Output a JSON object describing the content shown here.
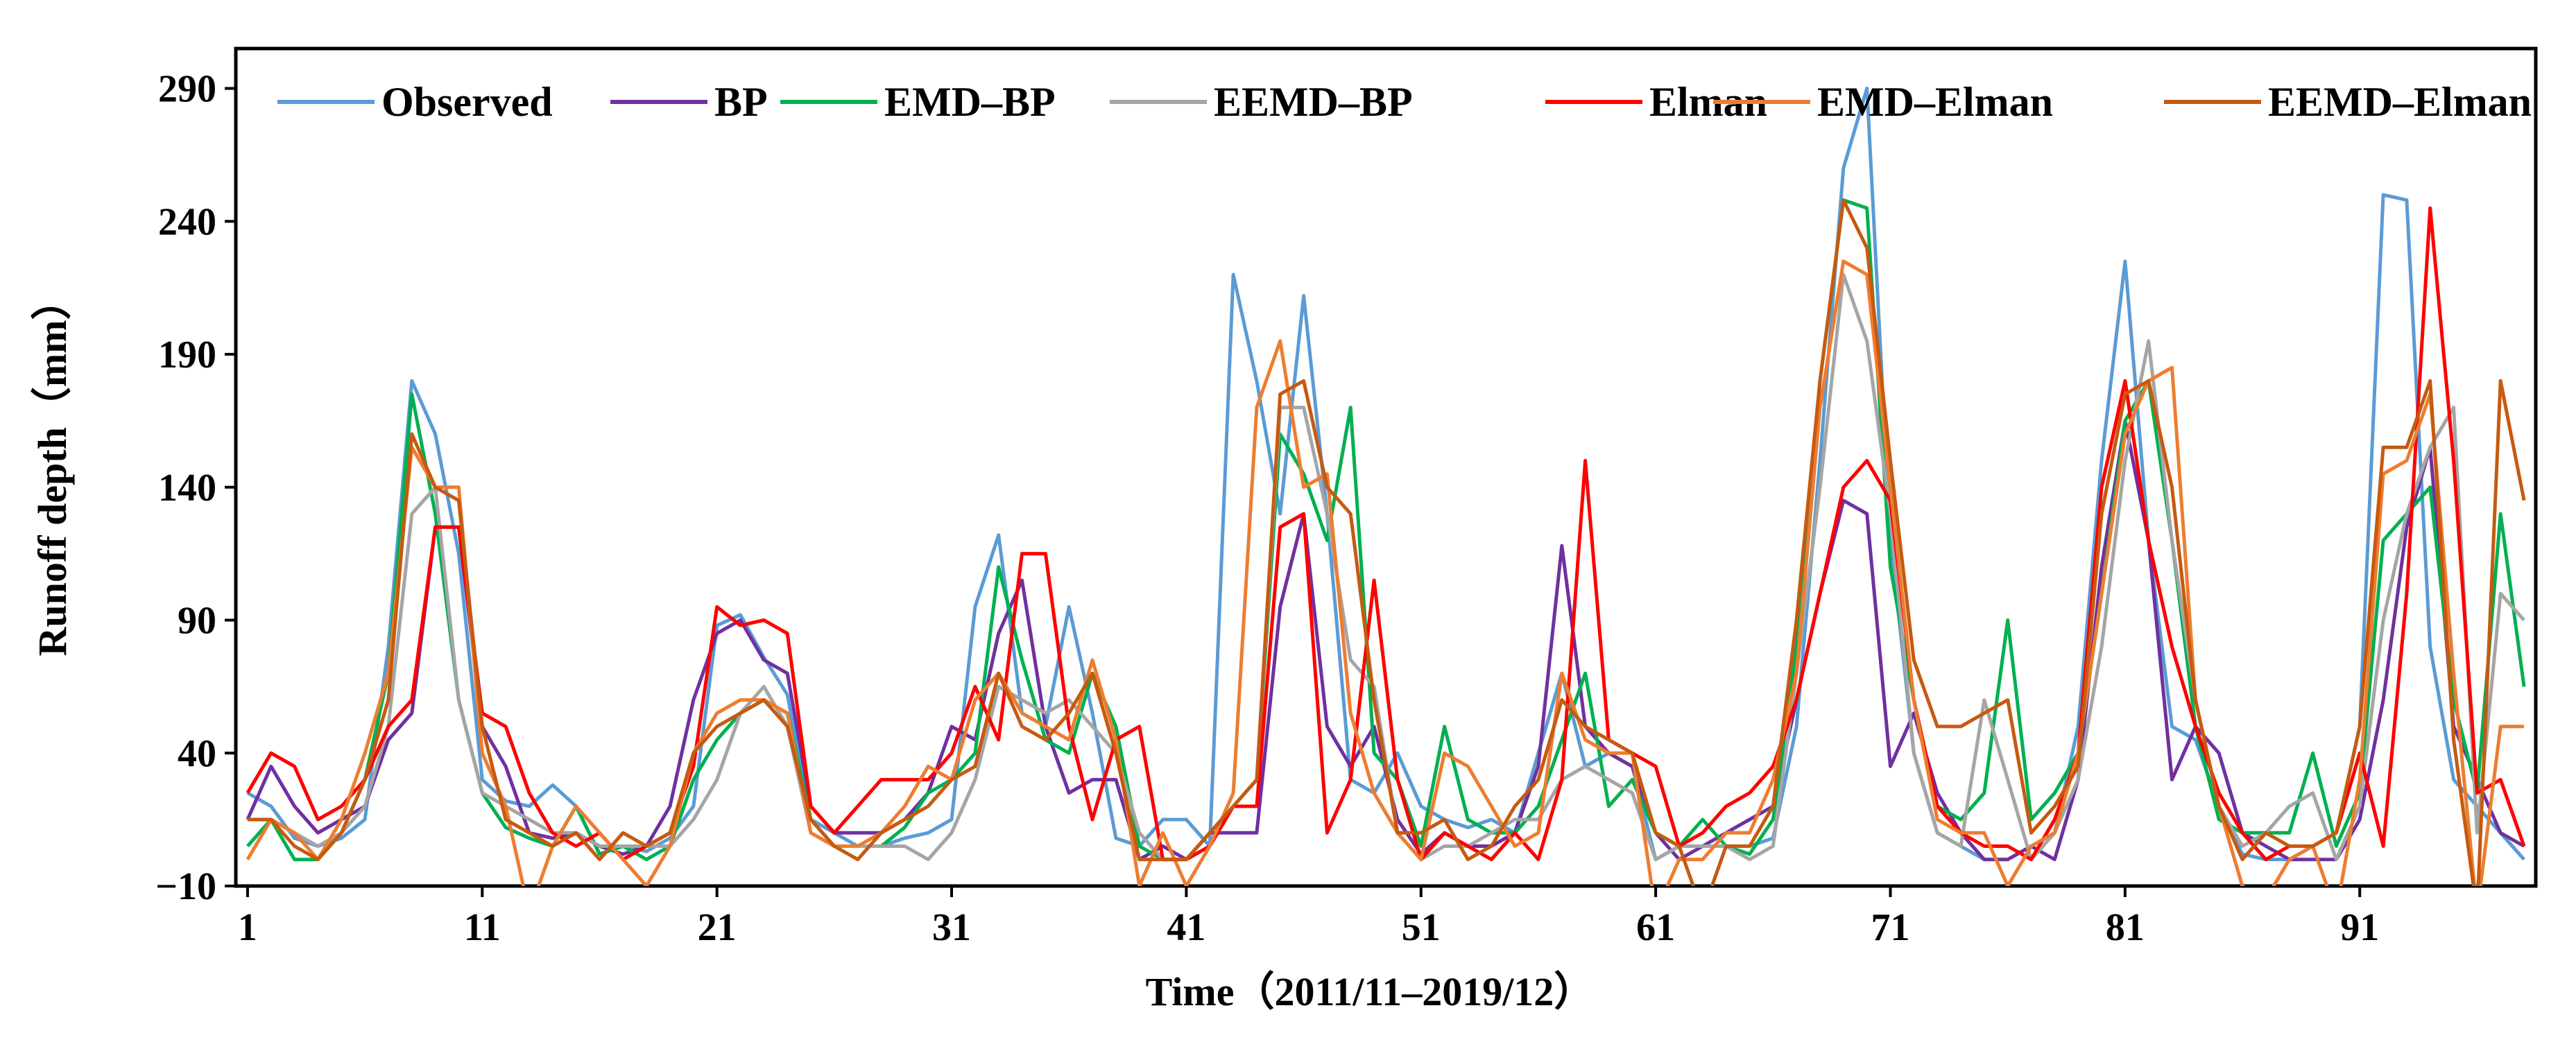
{
  "chart_data": {
    "type": "line",
    "title": "",
    "xlabel": "Time（2011/11–2019/12）",
    "ylabel": "Runoff depth（mm）",
    "ylim": [
      -10,
      305
    ],
    "xlim": [
      0.5,
      98.5
    ],
    "yticks": [
      -10,
      40,
      90,
      140,
      190,
      240,
      290
    ],
    "xticks": [
      1,
      11,
      21,
      31,
      41,
      51,
      61,
      71,
      81,
      91
    ],
    "ytick_labels": [
      "−10",
      "40",
      "90",
      "140",
      "190",
      "240",
      "290"
    ],
    "xtick_labels": [
      "1",
      "11",
      "21",
      "31",
      "41",
      "51",
      "61",
      "71",
      "81",
      "91"
    ],
    "grid": false,
    "legend_position": "top",
    "series": [
      {
        "name": "Observed",
        "color": "#5B9BD5",
        "values": [
          25,
          20,
          8,
          5,
          8,
          15,
          80,
          180,
          160,
          115,
          30,
          22,
          20,
          28,
          20,
          2,
          5,
          3,
          8,
          20,
          88,
          92,
          76,
          62,
          15,
          10,
          5,
          5,
          8,
          10,
          15,
          95,
          122,
          55,
          50,
          95,
          55,
          8,
          5,
          15,
          15,
          5,
          220,
          180,
          130,
          212,
          130,
          30,
          25,
          40,
          20,
          15,
          12,
          15,
          10,
          40,
          70,
          35,
          40,
          35,
          0,
          5,
          5,
          5,
          5,
          8,
          50,
          150,
          260,
          290,
          120,
          40,
          10,
          5,
          0,
          0,
          5,
          10,
          50,
          150,
          225,
          120,
          50,
          45,
          20,
          2,
          0,
          0,
          5,
          10,
          50,
          250,
          248,
          80,
          30,
          20,
          10,
          0
        ]
      },
      {
        "name": "BP",
        "color": "#7030A0",
        "values": [
          15,
          35,
          20,
          10,
          15,
          20,
          45,
          55,
          125,
          125,
          50,
          35,
          10,
          8,
          10,
          5,
          2,
          5,
          20,
          60,
          85,
          90,
          75,
          70,
          20,
          10,
          10,
          10,
          15,
          25,
          50,
          45,
          85,
          105,
          50,
          25,
          30,
          30,
          0,
          5,
          0,
          10,
          10,
          10,
          95,
          130,
          50,
          35,
          50,
          15,
          2,
          10,
          5,
          5,
          10,
          35,
          118,
          50,
          40,
          35,
          10,
          0,
          5,
          10,
          15,
          20,
          60,
          100,
          135,
          130,
          35,
          55,
          25,
          10,
          0,
          0,
          5,
          0,
          30,
          110,
          165,
          120,
          30,
          50,
          40,
          10,
          5,
          0,
          0,
          0,
          15,
          60,
          125,
          155,
          50,
          30,
          10,
          5
        ]
      },
      {
        "name": "EMD–BP",
        "color": "#00B050",
        "values": [
          5,
          15,
          0,
          0,
          10,
          30,
          70,
          175,
          130,
          60,
          25,
          12,
          8,
          5,
          20,
          2,
          5,
          0,
          5,
          30,
          45,
          55,
          60,
          55,
          15,
          5,
          5,
          5,
          12,
          25,
          30,
          40,
          110,
          75,
          45,
          40,
          70,
          50,
          5,
          0,
          0,
          10,
          20,
          30,
          160,
          145,
          120,
          170,
          40,
          30,
          5,
          50,
          15,
          10,
          10,
          20,
          45,
          70,
          20,
          30,
          10,
          5,
          15,
          5,
          2,
          15,
          80,
          180,
          248,
          245,
          110,
          60,
          20,
          15,
          25,
          90,
          15,
          25,
          40,
          100,
          165,
          180,
          120,
          50,
          15,
          10,
          10,
          10,
          40,
          5,
          25,
          120,
          130,
          140,
          60,
          25,
          130,
          65
        ]
      },
      {
        "name": "EEMD–BP",
        "color": "#A5A5A5",
        "values": [
          15,
          15,
          10,
          5,
          10,
          20,
          50,
          130,
          140,
          60,
          25,
          20,
          15,
          10,
          10,
          5,
          5,
          5,
          5,
          15,
          30,
          55,
          65,
          50,
          10,
          5,
          5,
          5,
          5,
          0,
          10,
          30,
          65,
          60,
          55,
          60,
          50,
          40,
          10,
          0,
          0,
          5,
          20,
          30,
          170,
          170,
          130,
          75,
          65,
          10,
          0,
          5,
          5,
          10,
          15,
          15,
          30,
          35,
          30,
          25,
          0,
          5,
          5,
          5,
          0,
          5,
          70,
          140,
          220,
          195,
          130,
          40,
          10,
          5,
          60,
          30,
          0,
          10,
          30,
          80,
          150,
          195,
          120,
          60,
          20,
          5,
          10,
          20,
          25,
          0,
          20,
          90,
          130,
          155,
          170,
          10,
          100,
          90
        ]
      },
      {
        "name": "Elman",
        "color": "#FF0000",
        "values": [
          25,
          40,
          35,
          15,
          20,
          30,
          50,
          60,
          125,
          125,
          55,
          50,
          25,
          10,
          5,
          10,
          0,
          5,
          10,
          35,
          95,
          88,
          90,
          85,
          20,
          10,
          20,
          30,
          30,
          30,
          40,
          65,
          45,
          115,
          115,
          50,
          15,
          45,
          50,
          0,
          0,
          5,
          20,
          20,
          125,
          130,
          10,
          30,
          105,
          30,
          0,
          10,
          5,
          0,
          10,
          0,
          30,
          150,
          45,
          40,
          35,
          5,
          10,
          20,
          25,
          35,
          60,
          100,
          140,
          150,
          135,
          60,
          20,
          10,
          5,
          5,
          0,
          15,
          40,
          140,
          180,
          120,
          80,
          50,
          25,
          10,
          0,
          5,
          5,
          10,
          40,
          5,
          100,
          245,
          150,
          25,
          30,
          5
        ]
      },
      {
        "name": "EMD–Elman",
        "color": "#ED7D31",
        "values": [
          0,
          15,
          10,
          0,
          15,
          40,
          70,
          155,
          140,
          140,
          40,
          20,
          -20,
          5,
          20,
          10,
          0,
          -10,
          5,
          40,
          55,
          60,
          60,
          55,
          10,
          5,
          5,
          10,
          20,
          35,
          30,
          60,
          70,
          55,
          50,
          45,
          75,
          45,
          -10,
          10,
          -10,
          5,
          25,
          170,
          195,
          140,
          145,
          55,
          25,
          10,
          0,
          40,
          35,
          20,
          5,
          10,
          70,
          45,
          40,
          40,
          -20,
          0,
          0,
          10,
          10,
          30,
          70,
          170,
          225,
          220,
          140,
          60,
          15,
          10,
          10,
          -10,
          5,
          10,
          40,
          100,
          160,
          180,
          185,
          60,
          20,
          -10,
          -15,
          0,
          5,
          -20,
          30,
          145,
          150,
          175,
          70,
          -20,
          50,
          50
        ]
      },
      {
        "name": "EEMD–Elman",
        "color": "#C55A11",
        "values": [
          15,
          15,
          5,
          0,
          10,
          30,
          60,
          160,
          140,
          135,
          50,
          15,
          10,
          5,
          10,
          0,
          10,
          5,
          10,
          40,
          50,
          55,
          60,
          50,
          15,
          5,
          0,
          10,
          15,
          20,
          30,
          35,
          70,
          50,
          45,
          55,
          70,
          40,
          0,
          0,
          0,
          10,
          20,
          30,
          175,
          180,
          140,
          130,
          60,
          10,
          10,
          15,
          0,
          5,
          20,
          30,
          60,
          50,
          45,
          40,
          10,
          5,
          -20,
          5,
          5,
          20,
          90,
          180,
          248,
          230,
          150,
          75,
          50,
          50,
          55,
          60,
          10,
          20,
          35,
          130,
          175,
          180,
          140,
          60,
          20,
          0,
          10,
          5,
          5,
          10,
          50,
          155,
          155,
          180,
          45,
          -20,
          180,
          135
        ]
      }
    ]
  }
}
